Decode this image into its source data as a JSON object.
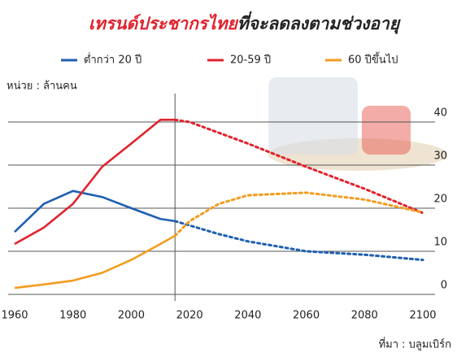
{
  "chart_data": {
    "type": "line",
    "title": [
      "เทรนด์ประชากรไทย",
      "ที่จะลดลงตามช่วงอายุ"
    ],
    "unit_label": "หน่วย : ล้านคน",
    "source": "ที่มา : บลูมเบิร์ก",
    "x": [
      1960,
      1970,
      1980,
      1990,
      2000,
      2010,
      2015,
      2020,
      2030,
      2040,
      2060,
      2080,
      2100
    ],
    "series": [
      {
        "name": "ต่ำกว่า 20 ปี",
        "color": "#1f5fb0",
        "values": [
          14.5,
          21,
          24,
          22.6,
          20,
          17.5,
          17,
          16,
          14,
          12.3,
          10,
          9.2,
          8
        ]
      },
      {
        "name": "20-59 ปี",
        "color": "#e0232e",
        "values": [
          11.7,
          15.5,
          21,
          29.6,
          35,
          40.5,
          40.5,
          40,
          37.5,
          35,
          29.6,
          24.5,
          18.9
        ]
      },
      {
        "name": "60 ปีขึ้นไป",
        "color": "#f39c1f",
        "values": [
          1.5,
          2.3,
          3.2,
          5,
          8,
          11.7,
          13.6,
          17,
          21,
          23,
          23.6,
          22,
          19
        ]
      }
    ],
    "projection_start": 2015,
    "xlim": [
      1960,
      2100
    ],
    "xticks": [
      1960,
      1980,
      2000,
      2020,
      2040,
      2060,
      2080,
      2100
    ],
    "ylim": [
      0,
      40
    ],
    "yticks": [
      0,
      10,
      20,
      30,
      40
    ],
    "grid": true
  }
}
